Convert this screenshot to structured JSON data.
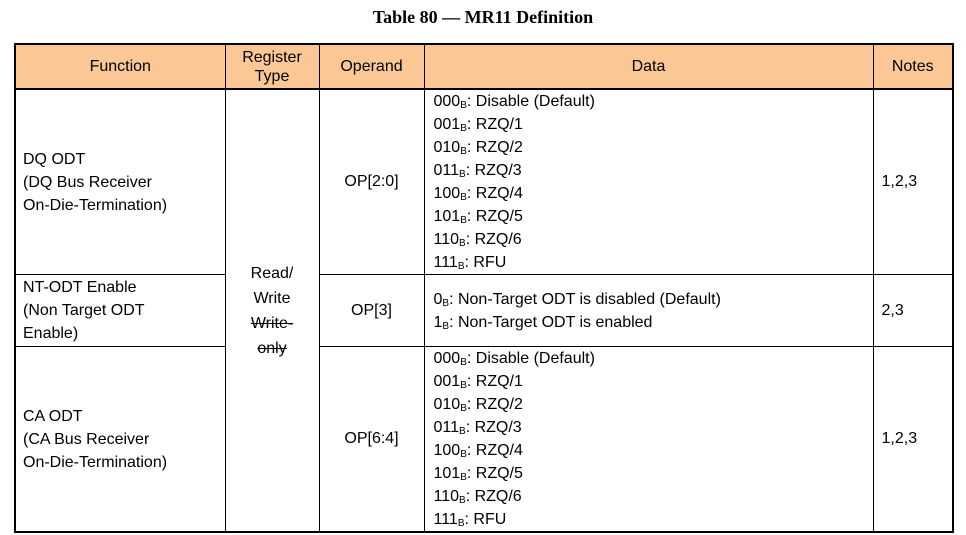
{
  "title": "Table 80 — MR11 Definition",
  "colors": {
    "header_bg": "#FBC795",
    "border": "#000000"
  },
  "table": {
    "headers": [
      "Function",
      "Register Type",
      "Operand",
      "Data",
      "Notes"
    ],
    "register_type": {
      "lines": [
        "Read/",
        "Write"
      ],
      "struck_lines": [
        "Write-",
        "only"
      ]
    },
    "rows": [
      {
        "function_lines": [
          "DQ ODT",
          "(DQ Bus Receiver",
          "On-Die-Termination)"
        ],
        "operand": "OP[2:0]",
        "data_lines": [
          {
            "bits": "000",
            "base": "B",
            "rest": ": Disable (Default)"
          },
          {
            "bits": "001",
            "base": "B",
            "rest": ": RZQ/1"
          },
          {
            "bits": "010",
            "base": "B",
            "rest": ": RZQ/2"
          },
          {
            "bits": "011",
            "base": "B",
            "rest": ": RZQ/3"
          },
          {
            "bits": "100",
            "base": "B",
            "rest": ": RZQ/4"
          },
          {
            "bits": "101",
            "base": "B",
            "rest": ": RZQ/5"
          },
          {
            "bits": "110",
            "base": "B",
            "rest": ": RZQ/6"
          },
          {
            "bits": "111",
            "base": "B",
            "rest": ": RFU"
          }
        ],
        "notes": "1,2,3"
      },
      {
        "function_lines": [
          "NT-ODT Enable",
          "(Non Target ODT",
          "Enable)"
        ],
        "operand": "OP[3]",
        "data_lines": [
          {
            "bits": "0",
            "base": "B",
            "rest": ": Non-Target ODT is disabled (Default)"
          },
          {
            "bits": "1",
            "base": "B",
            "rest": ": Non-Target ODT is enabled"
          }
        ],
        "notes": "2,3"
      },
      {
        "function_lines": [
          "CA ODT",
          "(CA Bus Receiver",
          "On-Die-Termination)"
        ],
        "operand": "OP[6:4]",
        "data_lines": [
          {
            "bits": "000",
            "base": "B",
            "rest": ": Disable (Default)"
          },
          {
            "bits": "001",
            "base": "B",
            "rest": ": RZQ/1"
          },
          {
            "bits": "010",
            "base": "B",
            "rest": ": RZQ/2"
          },
          {
            "bits": "011",
            "base": "B",
            "rest": ": RZQ/3"
          },
          {
            "bits": "100",
            "base": "B",
            "rest": ": RZQ/4"
          },
          {
            "bits": "101",
            "base": "B",
            "rest": ": RZQ/5"
          },
          {
            "bits": "110",
            "base": "B",
            "rest": ": RZQ/6"
          },
          {
            "bits": "111",
            "base": "B",
            "rest": ": RFU"
          }
        ],
        "notes": "1,2,3"
      }
    ]
  }
}
